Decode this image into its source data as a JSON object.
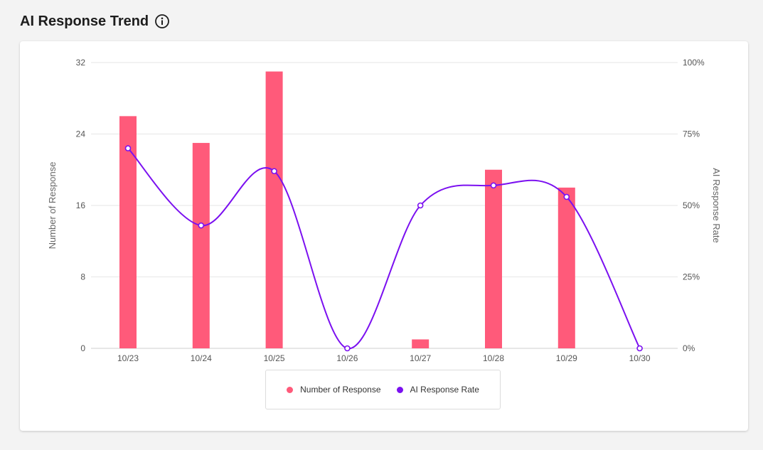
{
  "header": {
    "title": "AI Response Trend",
    "info_icon": "info-circle-icon"
  },
  "colors": {
    "bar": "#ff5a7a",
    "line": "#7b10f0",
    "grid": "#e6e6e6"
  },
  "chart_data": {
    "type": "bar",
    "categories": [
      "10/23",
      "10/24",
      "10/25",
      "10/26",
      "10/27",
      "10/28",
      "10/29",
      "10/30"
    ],
    "series": [
      {
        "name": "Number of Response",
        "type": "bar",
        "axis": "left",
        "values": [
          26,
          23,
          31,
          0,
          1,
          20,
          18,
          0
        ]
      },
      {
        "name": "AI Response Rate",
        "type": "line",
        "axis": "right",
        "values": [
          70,
          43,
          62,
          0,
          50,
          57,
          53,
          0
        ]
      }
    ],
    "ylabel": "Number of Response",
    "ylim": [
      0,
      32
    ],
    "yticks": [
      "0",
      "8",
      "16",
      "24",
      "32"
    ],
    "y2label": "AI Response Rate",
    "y2lim": [
      0,
      100
    ],
    "y2ticks": [
      "0%",
      "25%",
      "50%",
      "75%",
      "100%"
    ],
    "grid": true,
    "legend_position": "bottom"
  }
}
